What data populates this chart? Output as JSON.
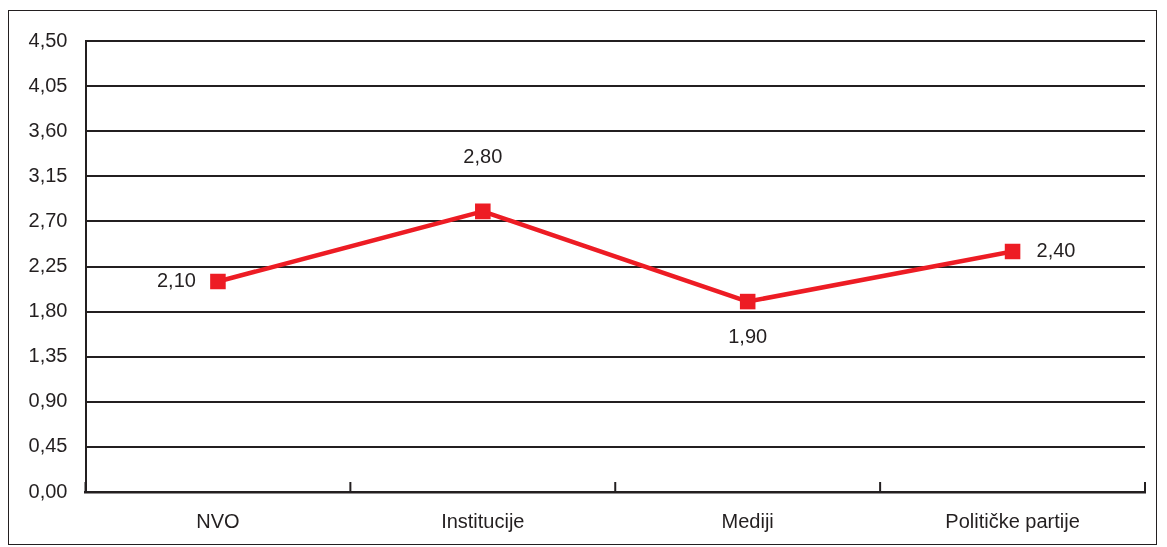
{
  "chart_data": {
    "type": "line",
    "categories": [
      "NVO",
      "Institucije",
      "Mediji",
      "Političke partije"
    ],
    "values": [
      2.1,
      2.8,
      1.9,
      2.4
    ],
    "value_labels": [
      "2,10",
      "2,80",
      "1,90",
      "2,40"
    ],
    "color": "#ed1c24",
    "ylim": [
      0,
      4.5
    ],
    "yticks": [
      {
        "value": 0,
        "label": "0,00"
      },
      {
        "value": 0.45,
        "label": "0,45"
      },
      {
        "value": 0.9,
        "label": "0,90"
      },
      {
        "value": 1.35,
        "label": "1,35"
      },
      {
        "value": 1.8,
        "label": "1,80"
      },
      {
        "value": 2.25,
        "label": "2,25"
      },
      {
        "value": 2.7,
        "label": "2,70"
      },
      {
        "value": 3.15,
        "label": "3,15"
      },
      {
        "value": 3.6,
        "label": "3,60"
      },
      {
        "value": 4.05,
        "label": "4,05"
      },
      {
        "value": 4.5,
        "label": "4,50"
      }
    ],
    "grid": "y",
    "marker": "square"
  }
}
